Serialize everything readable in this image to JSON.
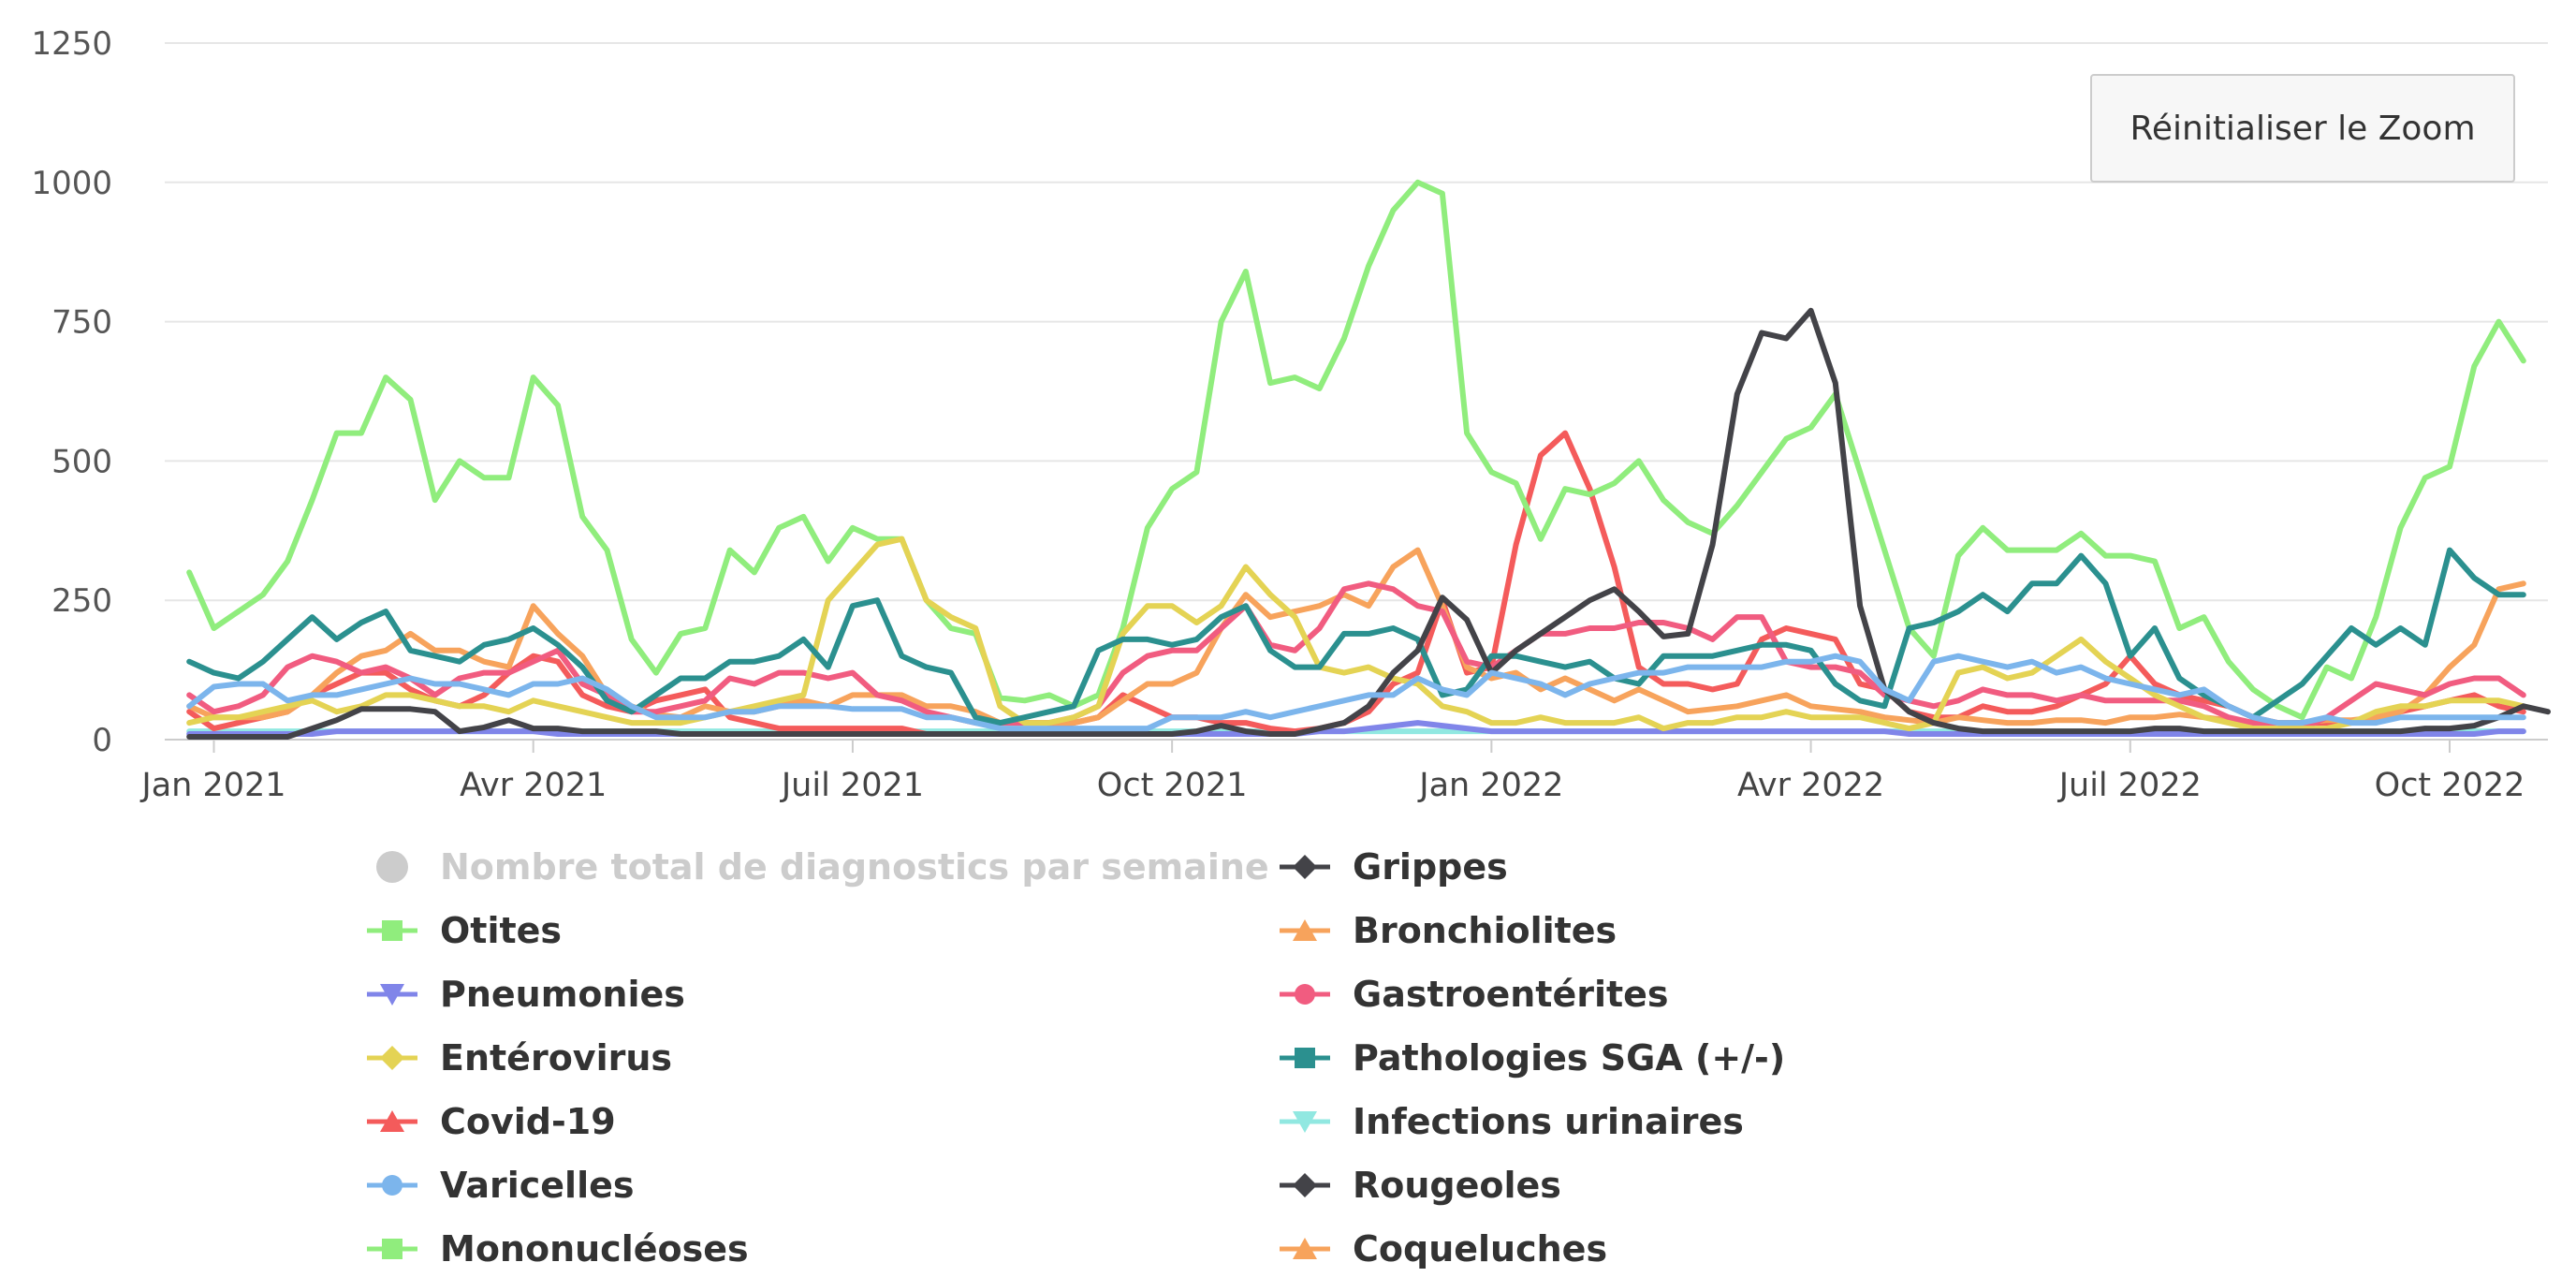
{
  "chart_data": {
    "type": "line",
    "ylim": [
      0,
      1250
    ],
    "yticks": [
      0,
      250,
      500,
      750,
      1000,
      1250
    ],
    "xticks": [
      {
        "label": "Jan 2021",
        "x": 1
      },
      {
        "label": "Avr 2021",
        "x": 14
      },
      {
        "label": "Juil 2021",
        "x": 27
      },
      {
        "label": "Oct 2021",
        "x": 40
      },
      {
        "label": "Jan 2022",
        "x": 53
      },
      {
        "label": "Avr 2022",
        "x": 66
      },
      {
        "label": "Juil 2022",
        "x": 79
      },
      {
        "label": "Oct 2022",
        "x": 92
      }
    ],
    "xlim": [
      -1,
      96
    ],
    "series": [
      {
        "name": "Nombre total de diagnostics par semaine",
        "color": "#bbbbbb",
        "marker": "circle",
        "visible": false,
        "values": []
      },
      {
        "name": "Grippes",
        "color": "#434348",
        "marker": "diamond",
        "visible": true,
        "values": [
          5,
          5,
          5,
          5,
          5,
          20,
          35,
          55,
          55,
          55,
          50,
          15,
          22,
          35,
          20,
          20,
          15,
          15,
          15,
          15,
          10,
          10,
          10,
          10,
          10,
          10,
          10,
          10,
          10,
          10,
          10,
          10,
          10,
          10,
          10,
          10,
          10,
          10,
          10,
          10,
          10,
          15,
          25,
          15,
          10,
          10,
          20,
          30,
          60,
          120,
          160,
          255,
          215,
          120,
          160,
          190,
          220,
          250,
          270,
          230,
          185,
          190,
          350,
          620,
          730,
          720,
          770,
          640,
          240,
          90,
          50,
          30,
          20,
          15,
          15,
          15,
          15,
          15,
          15,
          15,
          20,
          20,
          15,
          15,
          15,
          15,
          15,
          15,
          15,
          15,
          15,
          20,
          20,
          25,
          40,
          60,
          50
        ]
      },
      {
        "name": "Otites",
        "color": "#90ed7d",
        "marker": "square",
        "visible": true,
        "values": [
          300,
          200,
          230,
          260,
          320,
          430,
          550,
          550,
          650,
          610,
          430,
          500,
          470,
          470,
          650,
          600,
          400,
          340,
          180,
          120,
          190,
          200,
          340,
          300,
          380,
          400,
          320,
          380,
          360,
          360,
          250,
          200,
          190,
          75,
          70,
          80,
          60,
          80,
          200,
          380,
          450,
          480,
          750,
          840,
          640,
          650,
          630,
          720,
          850,
          950,
          1000,
          980,
          550,
          480,
          460,
          360,
          450,
          440,
          460,
          500,
          430,
          390,
          370,
          420,
          480,
          540,
          560,
          620,
          480,
          340,
          200,
          150,
          330,
          380,
          340,
          340,
          340,
          370,
          330,
          330,
          320,
          200,
          220,
          140,
          90,
          60,
          40,
          130,
          110,
          220,
          380,
          470,
          490,
          670,
          750,
          680
        ]
      },
      {
        "name": "Bronchiolites",
        "color": "#f7a35c",
        "marker": "triangle",
        "visible": true,
        "values": [
          60,
          40,
          40,
          40,
          50,
          80,
          120,
          150,
          160,
          190,
          160,
          160,
          140,
          130,
          240,
          190,
          150,
          80,
          60,
          45,
          40,
          60,
          50,
          50,
          60,
          70,
          60,
          80,
          80,
          80,
          60,
          60,
          50,
          30,
          30,
          30,
          30,
          40,
          70,
          100,
          100,
          120,
          200,
          260,
          220,
          230,
          240,
          260,
          240,
          310,
          340,
          240,
          130,
          110,
          120,
          90,
          110,
          90,
          70,
          90,
          70,
          50,
          55,
          60,
          70,
          80,
          60,
          55,
          50,
          40,
          35,
          30,
          40,
          35,
          30,
          30,
          35,
          35,
          30,
          40,
          40,
          45,
          40,
          35,
          30,
          30,
          30,
          35,
          35,
          40,
          50,
          80,
          130,
          170,
          270,
          280
        ]
      },
      {
        "name": "Pneumonies",
        "color": "#8085e9",
        "marker": "triangle-down",
        "visible": true,
        "values": [
          10,
          10,
          10,
          10,
          10,
          10,
          15,
          15,
          15,
          15,
          15,
          15,
          15,
          15,
          15,
          10,
          10,
          10,
          10,
          10,
          10,
          10,
          10,
          10,
          10,
          10,
          10,
          10,
          10,
          10,
          10,
          10,
          10,
          10,
          10,
          10,
          10,
          10,
          10,
          10,
          10,
          10,
          10,
          10,
          10,
          10,
          15,
          15,
          20,
          25,
          30,
          25,
          20,
          15,
          15,
          15,
          15,
          15,
          15,
          15,
          15,
          15,
          15,
          15,
          15,
          15,
          15,
          15,
          15,
          15,
          10,
          10,
          10,
          10,
          10,
          10,
          10,
          10,
          10,
          10,
          10,
          10,
          10,
          10,
          10,
          10,
          10,
          10,
          10,
          10,
          10,
          10,
          10,
          10,
          15,
          15
        ]
      },
      {
        "name": "Gastroentérites",
        "color": "#f15c80",
        "marker": "circle",
        "visible": true,
        "values": [
          80,
          50,
          60,
          80,
          130,
          150,
          140,
          120,
          130,
          110,
          80,
          110,
          120,
          120,
          140,
          160,
          100,
          80,
          50,
          50,
          60,
          70,
          110,
          100,
          120,
          120,
          110,
          120,
          80,
          70,
          50,
          40,
          30,
          30,
          30,
          30,
          40,
          60,
          120,
          150,
          160,
          160,
          200,
          240,
          170,
          160,
          200,
          270,
          280,
          270,
          240,
          230,
          140,
          130,
          160,
          190,
          190,
          200,
          200,
          210,
          210,
          200,
          180,
          220,
          220,
          140,
          130,
          130,
          120,
          80,
          70,
          60,
          70,
          90,
          80,
          80,
          70,
          80,
          70,
          70,
          70,
          70,
          60,
          40,
          30,
          30,
          20,
          40,
          70,
          100,
          90,
          80,
          100,
          110,
          110,
          80
        ]
      },
      {
        "name": "Entérovirus",
        "color": "#e4d354",
        "marker": "diamond",
        "visible": true,
        "values": [
          30,
          40,
          40,
          50,
          60,
          70,
          50,
          60,
          80,
          80,
          70,
          60,
          60,
          50,
          70,
          60,
          50,
          40,
          30,
          30,
          30,
          40,
          50,
          60,
          70,
          80,
          250,
          300,
          350,
          360,
          250,
          220,
          200,
          60,
          30,
          30,
          40,
          60,
          190,
          240,
          240,
          210,
          240,
          310,
          260,
          220,
          130,
          120,
          130,
          110,
          100,
          60,
          50,
          30,
          30,
          40,
          30,
          30,
          30,
          40,
          20,
          30,
          30,
          40,
          40,
          50,
          40,
          40,
          40,
          30,
          20,
          30,
          120,
          130,
          110,
          120,
          150,
          180,
          140,
          110,
          80,
          60,
          40,
          30,
          20,
          20,
          20,
          20,
          30,
          50,
          60,
          60,
          70,
          70,
          70,
          60
        ]
      },
      {
        "name": "Pathologies SGA (+/-)",
        "color": "#2b908f",
        "marker": "square",
        "visible": true,
        "values": [
          140,
          120,
          110,
          140,
          180,
          220,
          180,
          210,
          230,
          160,
          150,
          140,
          170,
          180,
          200,
          170,
          130,
          70,
          50,
          80,
          110,
          110,
          140,
          140,
          150,
          180,
          130,
          240,
          250,
          150,
          130,
          120,
          40,
          30,
          40,
          50,
          60,
          160,
          180,
          180,
          170,
          180,
          220,
          240,
          160,
          130,
          130,
          190,
          190,
          200,
          180,
          80,
          90,
          150,
          150,
          140,
          130,
          140,
          110,
          100,
          150,
          150,
          150,
          160,
          170,
          170,
          160,
          100,
          70,
          60,
          200,
          210,
          230,
          260,
          230,
          280,
          280,
          330,
          280,
          150,
          200,
          110,
          80,
          60,
          40,
          70,
          100,
          150,
          200,
          170,
          200,
          170,
          340,
          290,
          260,
          260
        ]
      },
      {
        "name": "Covid-19",
        "color": "#f45b5b",
        "marker": "triangle",
        "visible": true,
        "values": [
          50,
          20,
          30,
          40,
          50,
          80,
          100,
          120,
          120,
          90,
          70,
          60,
          80,
          120,
          150,
          140,
          80,
          60,
          50,
          70,
          80,
          90,
          40,
          30,
          20,
          20,
          20,
          20,
          20,
          20,
          10,
          10,
          10,
          10,
          15,
          20,
          30,
          40,
          80,
          60,
          40,
          40,
          30,
          30,
          20,
          15,
          20,
          30,
          50,
          100,
          120,
          250,
          120,
          130,
          350,
          510,
          550,
          450,
          310,
          130,
          100,
          100,
          90,
          100,
          180,
          200,
          190,
          180,
          100,
          90,
          50,
          40,
          40,
          60,
          50,
          50,
          60,
          80,
          100,
          150,
          100,
          80,
          70,
          60,
          40,
          30,
          30,
          30,
          30,
          40,
          50,
          60,
          70,
          80,
          60,
          50
        ]
      },
      {
        "name": "Infections urinaires",
        "color": "#91e8e1",
        "marker": "triangle-down",
        "visible": true,
        "values": [
          15,
          15,
          15,
          15,
          15,
          15,
          15,
          15,
          15,
          15,
          15,
          15,
          15,
          15,
          15,
          15,
          15,
          15,
          15,
          15,
          15,
          15,
          15,
          15,
          15,
          15,
          15,
          15,
          15,
          15,
          15,
          15,
          15,
          15,
          15,
          15,
          15,
          15,
          15,
          15,
          15,
          15,
          15,
          15,
          15,
          15,
          15,
          15,
          15,
          15,
          15,
          15,
          15,
          15,
          15,
          15,
          15,
          15,
          15,
          15,
          15,
          15,
          15,
          15,
          15,
          15,
          15,
          15,
          15,
          15,
          15,
          15,
          15,
          15,
          15,
          15,
          15,
          15,
          15,
          15,
          15,
          15,
          15,
          15,
          15,
          15,
          15,
          15,
          15,
          15,
          15,
          15,
          15,
          15,
          15,
          15
        ]
      },
      {
        "name": "Varicelles",
        "color": "#7cb5ec",
        "marker": "circle",
        "visible": true,
        "values": [
          60,
          95,
          100,
          100,
          70,
          80,
          80,
          90,
          100,
          110,
          100,
          100,
          90,
          80,
          100,
          100,
          110,
          90,
          60,
          40,
          40,
          40,
          50,
          50,
          60,
          60,
          60,
          55,
          55,
          55,
          40,
          40,
          30,
          20,
          20,
          20,
          20,
          20,
          20,
          20,
          40,
          40,
          40,
          50,
          40,
          50,
          60,
          70,
          80,
          80,
          110,
          90,
          80,
          120,
          110,
          100,
          80,
          100,
          110,
          120,
          120,
          130,
          130,
          130,
          130,
          140,
          140,
          150,
          140,
          90,
          70,
          140,
          150,
          140,
          130,
          140,
          120,
          130,
          110,
          100,
          90,
          80,
          90,
          60,
          40,
          30,
          30,
          40,
          30,
          30,
          40,
          40,
          40,
          40,
          40,
          40
        ]
      },
      {
        "name": "Rougeoles",
        "color": "#434348",
        "marker": "diamond",
        "visible": true,
        "values": []
      },
      {
        "name": "Mononucléoses",
        "color": "#90ed7d",
        "marker": "square",
        "visible": true,
        "values": []
      },
      {
        "name": "Coqueluches",
        "color": "#f7a35c",
        "marker": "triangle",
        "visible": true,
        "values": []
      }
    ]
  },
  "ui": {
    "reset_zoom_label": "Réinitialiser le Zoom"
  }
}
